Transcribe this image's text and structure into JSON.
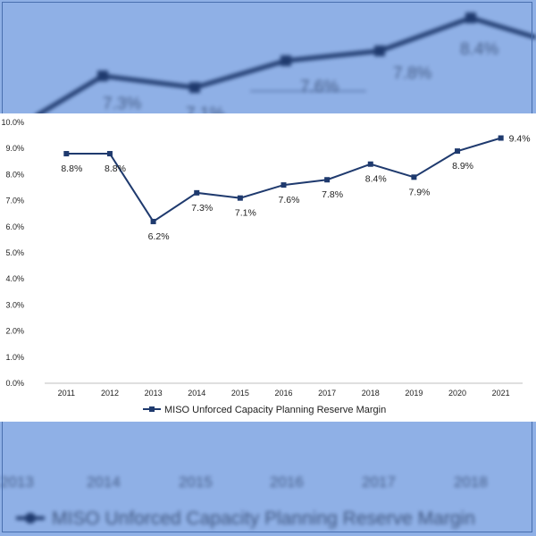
{
  "chart_data": {
    "type": "line",
    "title": "",
    "xlabel": "",
    "ylabel": "",
    "categories": [
      "2011",
      "2012",
      "2013",
      "2014",
      "2015",
      "2016",
      "2017",
      "2018",
      "2019",
      "2020",
      "2021"
    ],
    "series": [
      {
        "name": "MISO Unforced Capacity Planning Reserve Margin",
        "values": [
          8.8,
          8.8,
          6.2,
          7.3,
          7.1,
          7.6,
          7.8,
          8.4,
          7.9,
          8.9,
          9.4
        ],
        "data_labels": [
          "8.8%",
          "8.8%",
          "6.2%",
          "7.3%",
          "7.1%",
          "7.6%",
          "7.8%",
          "8.4%",
          "7.9%",
          "8.9%",
          "9.4%"
        ],
        "color": "#1f3a6e"
      }
    ],
    "yticks": [
      "0.0%",
      "1.0%",
      "2.0%",
      "3.0%",
      "4.0%",
      "5.0%",
      "6.0%",
      "7.0%",
      "8.0%",
      "9.0%",
      "10.0%"
    ],
    "ylim": [
      0,
      10
    ],
    "grid": false,
    "legend_position": "bottom"
  },
  "background": {
    "color": "#8fb0e6",
    "blurred_values": [
      "7.3%",
      "7.1%",
      "7.6%",
      "7.8%",
      "8.4%"
    ],
    "blurred_years": [
      "2013",
      "2014",
      "2015",
      "2016",
      "2017",
      "2018"
    ],
    "blurred_legend": "MISO Unforced Capacity Planning Reserve Margin"
  }
}
